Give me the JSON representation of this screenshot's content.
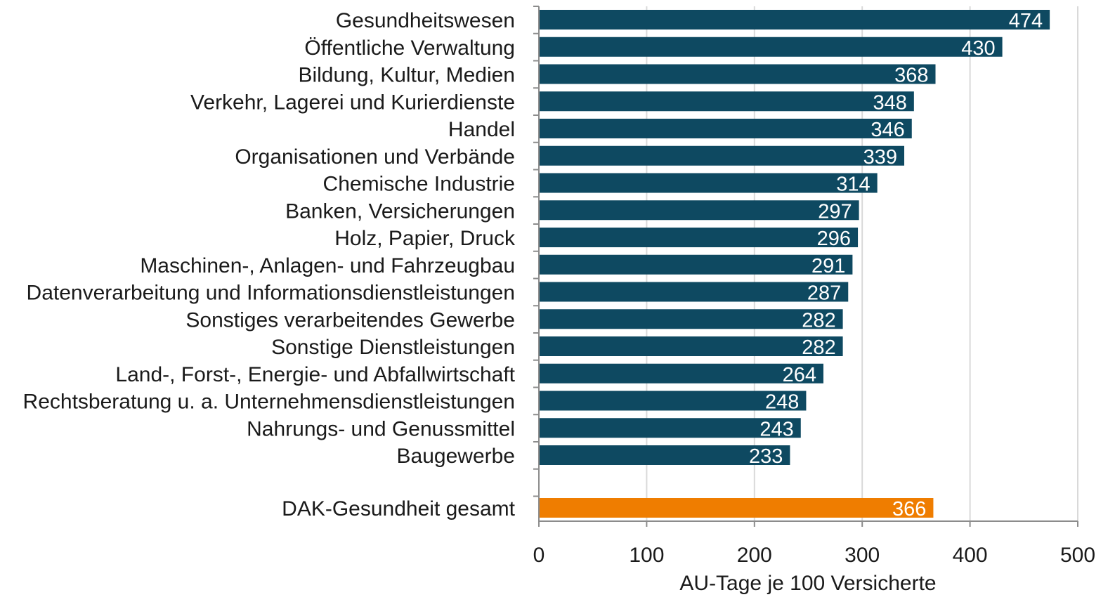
{
  "chart_data": {
    "type": "bar",
    "orientation": "horizontal",
    "categories": [
      "Gesundheitswesen",
      "Öffentliche Verwaltung",
      "Bildung, Kultur, Medien",
      "Verkehr, Lagerei und Kurierdienste",
      "Handel",
      "Organisationen und Verbände",
      "Chemische Industrie",
      "Banken, Versicherungen",
      "Holz, Papier, Druck",
      "Maschinen-, Anlagen- und Fahrzeugbau",
      "Datenverarbeitung und Informationsdienstleistungen",
      "Sonstiges verarbeitendes Gewerbe",
      "Sonstige Dienstleistungen",
      "Land-, Forst-,  Energie- und Abfallwirtschaft",
      "Rechtsberatung u. a. Unternehmensdienstleistungen",
      "Nahrungs- und Genussmittel",
      "Baugewerbe"
    ],
    "values": [
      474,
      430,
      368,
      348,
      346,
      339,
      314,
      297,
      296,
      291,
      287,
      282,
      282,
      264,
      248,
      243,
      233
    ],
    "total": {
      "label": "DAK-Gesundheit gesamt",
      "value": 366
    },
    "xlabel": "AU-Tage je 100 Versicherte",
    "xlim": [
      0,
      500
    ],
    "xticks": [
      "0",
      "100",
      "200",
      "300",
      "400",
      "500"
    ],
    "grid": "vertical",
    "colors": {
      "bar": "#0e4961",
      "total_bar": "#ef7d00",
      "grid": "#d9d9d9",
      "axis": "#8c8c8c"
    }
  }
}
